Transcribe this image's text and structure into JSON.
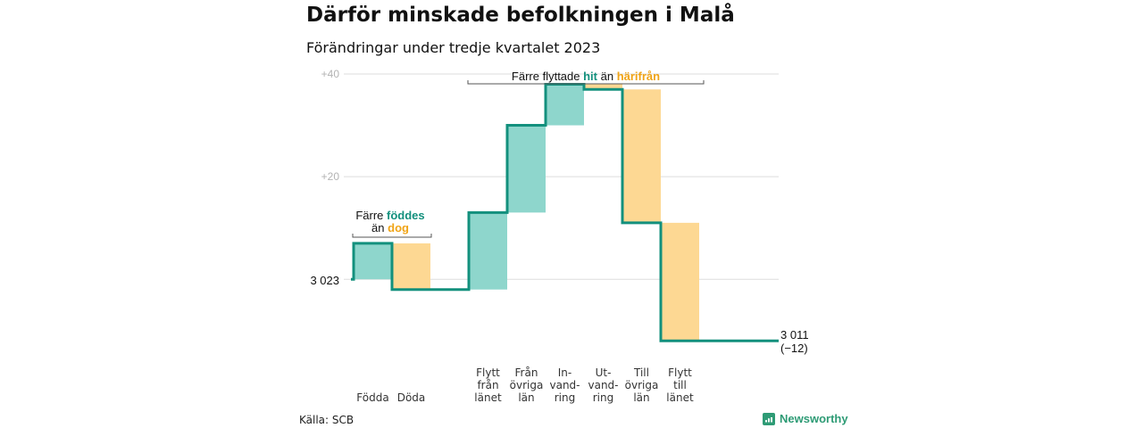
{
  "header": {
    "title": "Därför minskade befolkningen i Malå",
    "subtitle": "Förändringar under tredje kvartalet 2023"
  },
  "chart_data": {
    "type": "waterfall",
    "start_value": 3023,
    "start_label": "3 023",
    "end_value": 3011,
    "end_label": "3 011",
    "end_change_label": "(−12)",
    "yticks": [
      {
        "value": 3063,
        "label": "+40"
      },
      {
        "value": 3043,
        "label": "+20"
      }
    ],
    "ylim": [
      3010,
      3063
    ],
    "steps": [
      {
        "lines": [
          "Födda"
        ],
        "delta": 7
      },
      {
        "lines": [
          "Döda"
        ],
        "delta": -9
      },
      {
        "lines": [
          "Flytt",
          "från",
          "länet"
        ],
        "delta": 15
      },
      {
        "lines": [
          "Från",
          "övriga",
          "län"
        ],
        "delta": 17
      },
      {
        "lines": [
          "In-",
          "vand-",
          "ring"
        ],
        "delta": 8
      },
      {
        "lines": [
          "Ut-",
          "vand-",
          "ring"
        ],
        "delta": -1
      },
      {
        "lines": [
          "Till",
          "övriga",
          "län"
        ],
        "delta": -26
      },
      {
        "lines": [
          "Flytt",
          "till",
          "länet"
        ],
        "delta": -23
      }
    ],
    "gap_after_index": 1,
    "annotations": {
      "births": {
        "line1_prefix": "Färre ",
        "line1_highlight": "föddes",
        "line2_prefix": "än ",
        "line2_highlight": "dog"
      },
      "migration": {
        "prefix": "Färre flyttade ",
        "highlight1": "hit",
        "middle": " än ",
        "highlight2": "härifrån"
      }
    },
    "colors": {
      "positive": "#8ed6cc",
      "negative": "#fdd893",
      "line": "#13907d",
      "positive_text": "#13907d",
      "negative_text": "#f0a416",
      "grid": "#dddddd"
    }
  },
  "footer": {
    "source": "Källa: SCB",
    "brand": "Newsworthy",
    "brand_color": "#2e9b75"
  }
}
